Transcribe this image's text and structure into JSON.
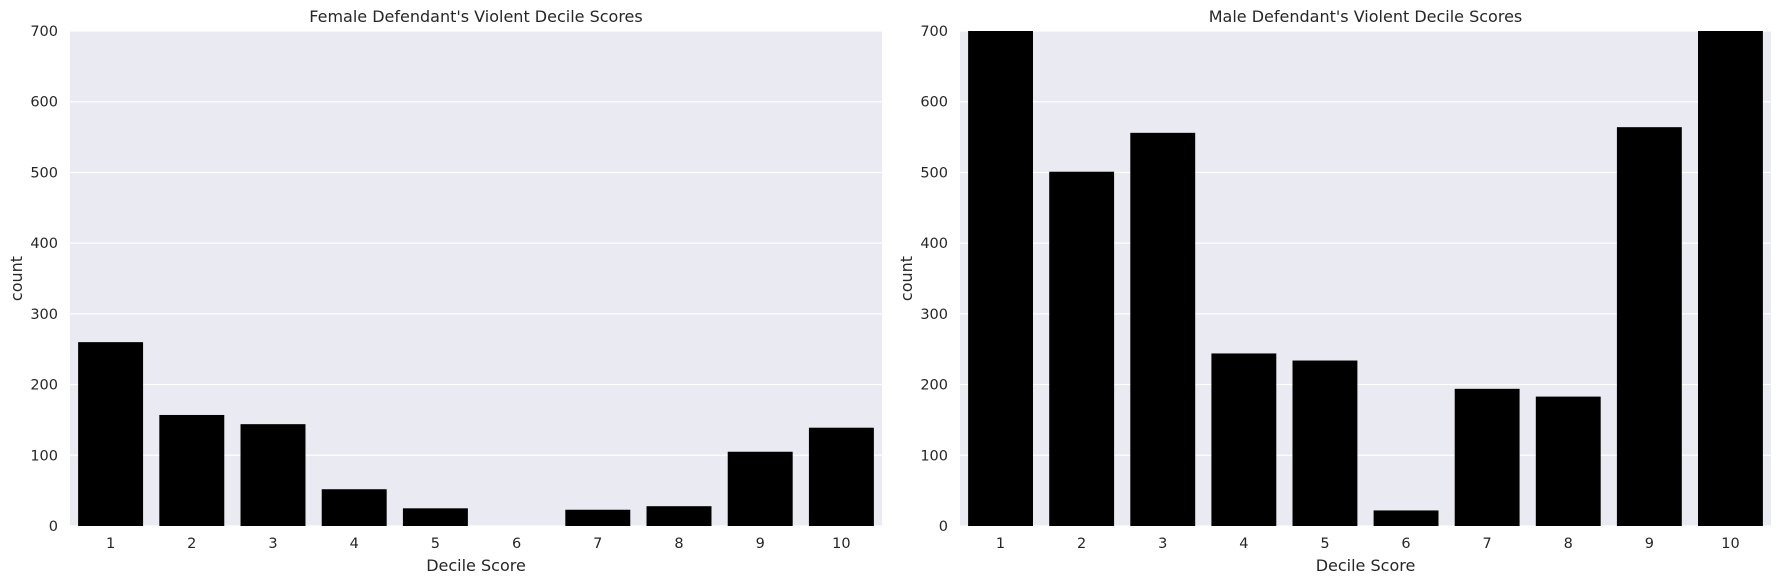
{
  "chart_data": [
    {
      "type": "bar",
      "title": "Female Defendant's Violent Decile Scores",
      "xlabel": "Decile Score",
      "ylabel": "count",
      "categories": [
        "1",
        "2",
        "3",
        "4",
        "5",
        "6",
        "7",
        "8",
        "9",
        "10"
      ],
      "values": [
        260,
        157,
        144,
        52,
        25,
        0,
        23,
        28,
        105,
        139
      ],
      "ylim": [
        0,
        700
      ],
      "yticks": [
        0,
        100,
        200,
        300,
        400,
        500,
        600,
        700
      ],
      "grid": true,
      "bar_color": "#000000",
      "background_color": "#eaeaf2",
      "grid_color": "#ffffff"
    },
    {
      "type": "bar",
      "title": "Male Defendant's Violent Decile Scores",
      "xlabel": "Decile Score",
      "ylabel": "count",
      "categories": [
        "1",
        "2",
        "3",
        "4",
        "5",
        "6",
        "7",
        "8",
        "9",
        "10"
      ],
      "values": [
        700,
        501,
        556,
        244,
        234,
        22,
        194,
        183,
        564,
        700
      ],
      "ylim": [
        0,
        700
      ],
      "yticks": [
        0,
        100,
        200,
        300,
        400,
        500,
        600,
        700
      ],
      "grid": true,
      "bar_color": "#000000",
      "background_color": "#eaeaf2",
      "grid_color": "#ffffff"
    }
  ]
}
